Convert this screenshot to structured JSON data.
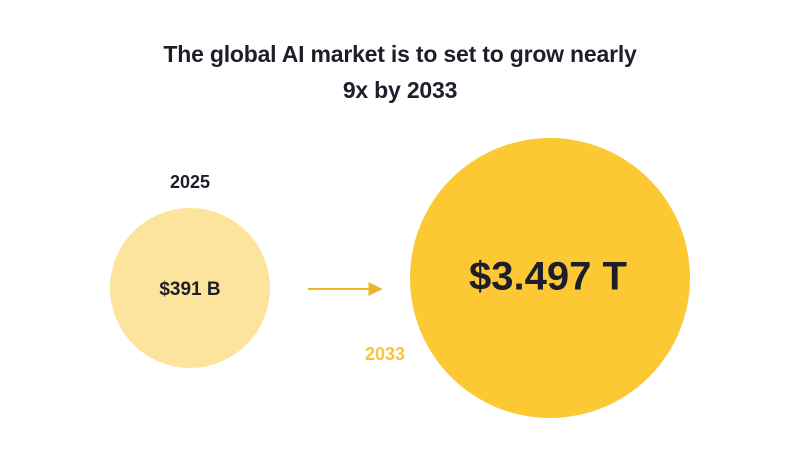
{
  "title": "The global AI market is to set to grow nearly 9x by 2033",
  "items": [
    {
      "year": "2025",
      "value": "$391 B"
    },
    {
      "year": "2033",
      "value": "$3.497 T"
    }
  ]
}
